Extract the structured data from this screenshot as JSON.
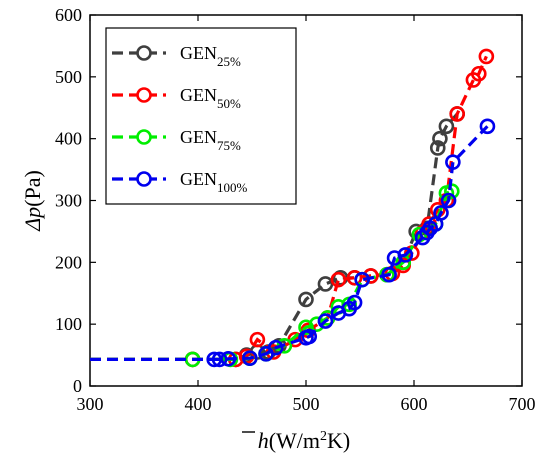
{
  "chart_data": {
    "type": "line",
    "title": "",
    "xlabel": {
      "base": "h",
      "overline": true,
      "unit_prefix": "(W/m",
      "unit_sup": "2",
      "unit_suffix": "K)"
    },
    "ylabel": {
      "base": "Δp",
      "unit": "(Pa)"
    },
    "xlim": [
      300,
      700
    ],
    "ylim": [
      0,
      600
    ],
    "xticks": [
      300,
      400,
      500,
      600,
      700
    ],
    "yticks": [
      0,
      100,
      200,
      300,
      400,
      500,
      600
    ],
    "grid": false,
    "legend_position": "top-left",
    "series": [
      {
        "name": "GEN",
        "sub": "25%",
        "color": "#3f3f3f",
        "line_from": 300,
        "points": [
          [
            395,
            43
          ],
          [
            435,
            43
          ],
          [
            445,
            50
          ],
          [
            455,
            55
          ],
          [
            465,
            55
          ],
          [
            475,
            65
          ],
          [
            500,
            140
          ],
          [
            518,
            165
          ],
          [
            532,
            175
          ],
          [
            545,
            175
          ],
          [
            560,
            178
          ],
          [
            575,
            180
          ],
          [
            590,
            200
          ],
          [
            602,
            250
          ],
          [
            612,
            255
          ],
          [
            622,
            385
          ],
          [
            624,
            400
          ],
          [
            630,
            420
          ],
          [
            640,
            440
          ]
        ]
      },
      {
        "name": "GEN",
        "sub": "50%",
        "color": "#ff0000",
        "line_from": 300,
        "points": [
          [
            395,
            43
          ],
          [
            435,
            43
          ],
          [
            445,
            48
          ],
          [
            455,
            75
          ],
          [
            470,
            55
          ],
          [
            490,
            75
          ],
          [
            502,
            90
          ],
          [
            520,
            110
          ],
          [
            530,
            172
          ],
          [
            545,
            175
          ],
          [
            560,
            178
          ],
          [
            580,
            182
          ],
          [
            590,
            195
          ],
          [
            598,
            215
          ],
          [
            608,
            248
          ],
          [
            614,
            262
          ],
          [
            622,
            285
          ],
          [
            630,
            300
          ],
          [
            640,
            440
          ],
          [
            655,
            495
          ],
          [
            660,
            505
          ],
          [
            667,
            533
          ]
        ]
      },
      {
        "name": "GEN",
        "sub": "75%",
        "color": "#00ee00",
        "line_from": 300,
        "points": [
          [
            395,
            43
          ],
          [
            430,
            43
          ],
          [
            448,
            45
          ],
          [
            463,
            52
          ],
          [
            480,
            65
          ],
          [
            500,
            95
          ],
          [
            510,
            100
          ],
          [
            520,
            110
          ],
          [
            530,
            128
          ],
          [
            540,
            132
          ],
          [
            552,
            172
          ],
          [
            575,
            180
          ],
          [
            590,
            200
          ],
          [
            605,
            245
          ],
          [
            620,
            262
          ],
          [
            630,
            312
          ],
          [
            635,
            315
          ]
        ]
      },
      {
        "name": "GEN",
        "sub": "100%",
        "color": "#0000ee",
        "line_from": 300,
        "points": [
          [
            415,
            43
          ],
          [
            420,
            43
          ],
          [
            428,
            44
          ],
          [
            448,
            45
          ],
          [
            463,
            52
          ],
          [
            472,
            62
          ],
          [
            500,
            78
          ],
          [
            503,
            80
          ],
          [
            518,
            105
          ],
          [
            530,
            118
          ],
          [
            540,
            125
          ],
          [
            545,
            135
          ],
          [
            552,
            172
          ],
          [
            577,
            180
          ],
          [
            582,
            207
          ],
          [
            592,
            212
          ],
          [
            608,
            240
          ],
          [
            612,
            248
          ],
          [
            615,
            255
          ],
          [
            620,
            262
          ],
          [
            625,
            280
          ],
          [
            632,
            300
          ],
          [
            636,
            362
          ],
          [
            668,
            420
          ]
        ]
      }
    ]
  }
}
